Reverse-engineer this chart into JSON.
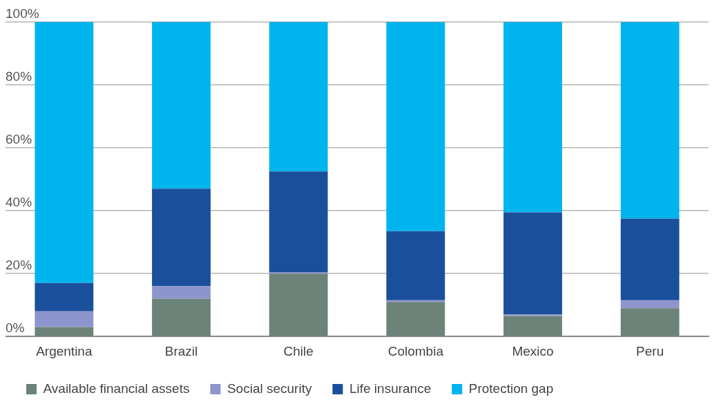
{
  "chart_data": {
    "type": "bar",
    "stacked": true,
    "categories": [
      "Argentina",
      "Brazil",
      "Chile",
      "Colombia",
      "Mexico",
      "Peru"
    ],
    "series": [
      {
        "name": "Available financial assets",
        "color": "#6b8379",
        "values": [
          3,
          12,
          20,
          11,
          6.5,
          9
        ]
      },
      {
        "name": "Social security",
        "color": "#8e95cc",
        "values": [
          5,
          4,
          0.5,
          0.5,
          0.5,
          2.5
        ]
      },
      {
        "name": "Life insurance",
        "color": "#1a4f9c",
        "values": [
          9,
          31,
          32,
          22,
          32.5,
          26
        ]
      },
      {
        "name": "Protection gap",
        "color": "#00b5ee",
        "values": [
          83,
          53,
          47.5,
          66.5,
          60.5,
          62.5
        ]
      }
    ],
    "ylim": [
      0,
      100
    ],
    "yticks": [
      {
        "value": 0,
        "label": "0%"
      },
      {
        "value": 20,
        "label": "20%"
      },
      {
        "value": 40,
        "label": "40%"
      },
      {
        "value": 60,
        "label": "60%"
      },
      {
        "value": 80,
        "label": "80%"
      },
      {
        "value": 100,
        "label": "100%"
      }
    ],
    "grid": "y",
    "legend": "bottom"
  }
}
